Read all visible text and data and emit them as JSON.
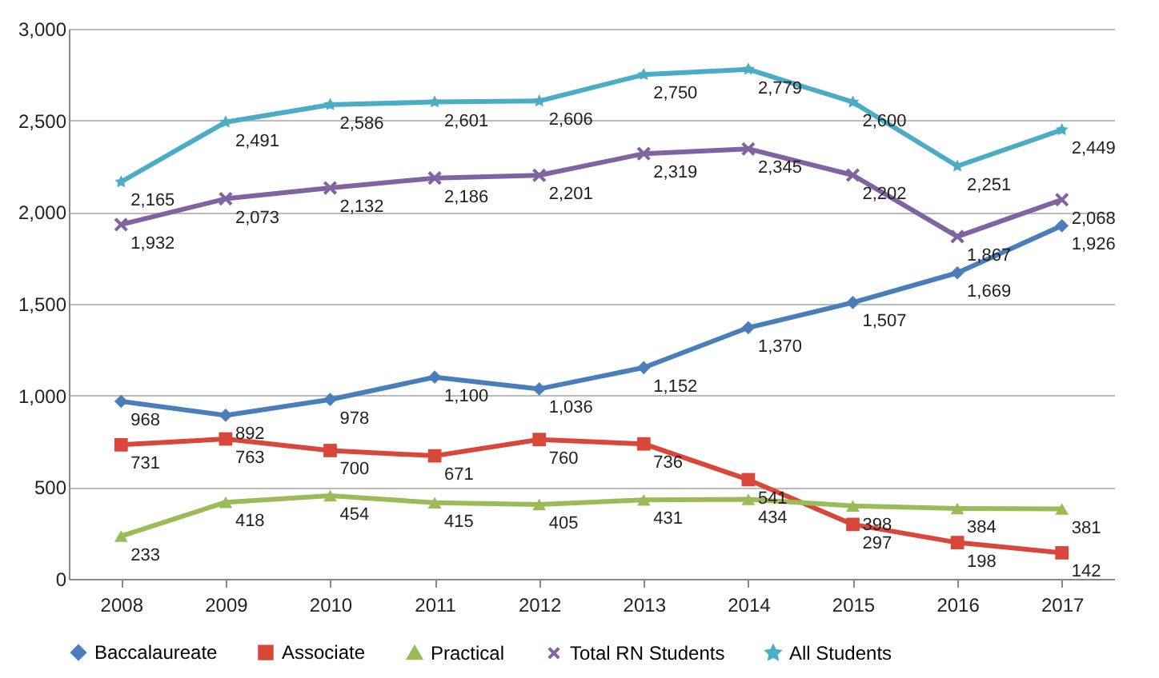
{
  "chart_data": {
    "type": "line",
    "categories": [
      "2008",
      "2009",
      "2010",
      "2011",
      "2012",
      "2013",
      "2014",
      "2015",
      "2016",
      "2017"
    ],
    "series": [
      {
        "name": "Baccalaureate",
        "color": "#4a7ebb",
        "marker": "diamond",
        "values": [
          968,
          892,
          978,
          1100,
          1036,
          1152,
          1370,
          1507,
          1669,
          1926
        ],
        "value_labels": [
          "968",
          "892",
          "978",
          "1,100",
          "1,036",
          "1,152",
          "1,370",
          "1,507",
          "1,669",
          "1,926"
        ]
      },
      {
        "name": "Associate",
        "color": "#d9463a",
        "marker": "square",
        "values": [
          731,
          763,
          700,
          671,
          760,
          736,
          541,
          297,
          198,
          142
        ],
        "value_labels": [
          "731",
          "763",
          "700",
          "671",
          "760",
          "736",
          "541",
          "297",
          "198",
          "142"
        ]
      },
      {
        "name": "Practical",
        "color": "#9bbb59",
        "marker": "triangle",
        "values": [
          233,
          418,
          454,
          415,
          405,
          431,
          434,
          398,
          384,
          381
        ],
        "value_labels": [
          "233",
          "418",
          "454",
          "415",
          "405",
          "431",
          "434",
          "398",
          "384",
          "381"
        ]
      },
      {
        "name": "Total RN Students",
        "color": "#8064a2",
        "marker": "cross",
        "values": [
          1932,
          2073,
          2132,
          2186,
          2201,
          2319,
          2345,
          2202,
          1867,
          2068
        ],
        "value_labels": [
          "1,932",
          "2,073",
          "2,132",
          "2,186",
          "2,201",
          "2,319",
          "2,345",
          "2,202",
          "1,867",
          "2,068"
        ]
      },
      {
        "name": "All Students",
        "color": "#4bacc6",
        "marker": "star",
        "values": [
          2165,
          2491,
          2586,
          2601,
          2606,
          2750,
          2779,
          2600,
          2251,
          2449
        ],
        "value_labels": [
          "2,165",
          "2,491",
          "2,586",
          "2,601",
          "2,606",
          "2,750",
          "2,779",
          "2,600",
          "2,251",
          "2,449"
        ]
      }
    ],
    "ylim": [
      0,
      3000
    ],
    "yticks": [
      0,
      500,
      {
        "value": 1000,
        "label": "1,000"
      },
      {
        "value": 1500,
        "label": "1,500"
      },
      {
        "value": 2000,
        "label": "2,000"
      },
      {
        "value": 2500,
        "label": "2,500"
      },
      {
        "value": 3000,
        "label": "3,000"
      }
    ],
    "grid": "y",
    "legend": "bottom",
    "line_style": "solid"
  }
}
